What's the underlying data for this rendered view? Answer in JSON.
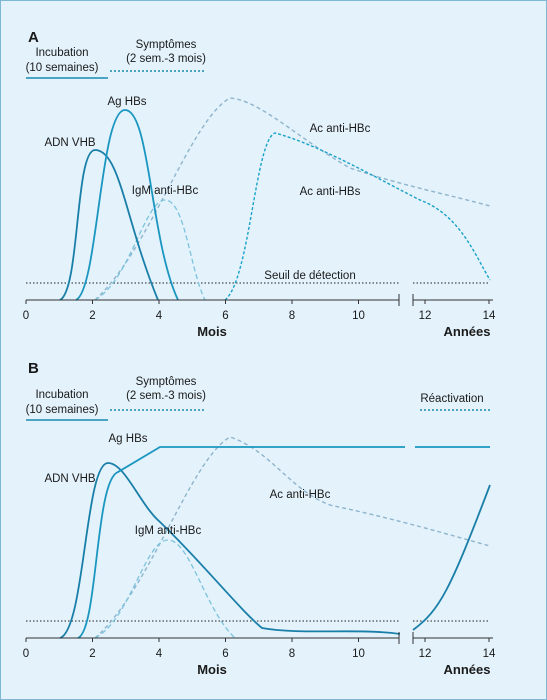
{
  "panels": [
    {
      "letter": "A",
      "incubation": [
        "Incubation",
        "(10 semaines)"
      ],
      "symptoms": [
        "Symptômes",
        "(2 sem.-3 mois)"
      ],
      "labels": {
        "ag_hbs": "Ag HBs",
        "adn_vhb": "ADN VHB",
        "igm": "IgM anti-HBc",
        "ac_hbc": "Ac anti-HBc",
        "ac_hbs": "Ac anti-HBs",
        "threshold": "Seuil de détection"
      },
      "month_ticks": [
        "0",
        "2",
        "4",
        "6",
        "8",
        "10"
      ],
      "year_ticks": [
        "12",
        "14"
      ],
      "x_label_months": "Mois",
      "x_label_years": "Années"
    },
    {
      "letter": "B",
      "incubation": [
        "Incubation",
        "(10 semaines)"
      ],
      "symptoms": [
        "Symptômes",
        "(2 sem.-3 mois)"
      ],
      "labels": {
        "ag_hbs": "Ag HBs",
        "adn_vhb": "ADN VHB",
        "igm": "IgM anti-HBc",
        "ac_hbc": "Ac anti-HBc",
        "reactivation": "Réactivation"
      },
      "month_ticks": [
        "0",
        "2",
        "4",
        "6",
        "8",
        "10"
      ],
      "year_ticks": [
        "12",
        "14"
      ],
      "x_label_months": "Mois",
      "x_label_years": "Années"
    }
  ]
}
